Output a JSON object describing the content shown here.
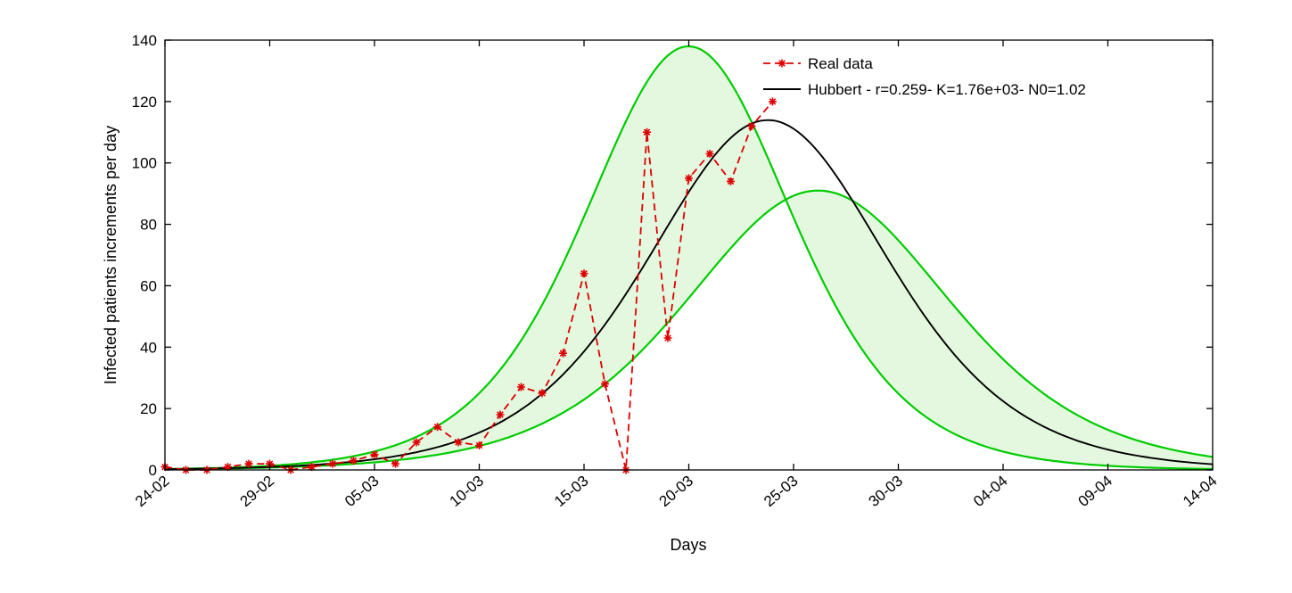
{
  "page": {
    "background": "#ffffff"
  },
  "chart_data": {
    "type": "line",
    "title": "",
    "xlabel": "Days",
    "ylabel": "Infected patients increments per day",
    "xlim_days": [
      0,
      50
    ],
    "ylim": [
      0,
      140
    ],
    "grid": false,
    "legend_position": "top-right",
    "legend": [
      "Real data",
      "Hubbert - r=0.259- K=1.76e+03- N0=1.02"
    ],
    "x_ticks_days": [
      0,
      5,
      10,
      15,
      20,
      25,
      30,
      35,
      40,
      45,
      50
    ],
    "x_tick_labels": [
      "24-02",
      "29-02",
      "05-03",
      "10-03",
      "15-03",
      "20-03",
      "25-03",
      "30-03",
      "04-04",
      "09-04",
      "14-04"
    ],
    "y_ticks": [
      0,
      20,
      40,
      60,
      80,
      100,
      120,
      140
    ],
    "colors": {
      "real_data": "#dd0000",
      "hubbert_fit": "#000000",
      "confidence_curves": "#00cc00",
      "confidence_fill": "#e4f8df",
      "axis": "#000000"
    },
    "series": [
      {
        "name": "Real data",
        "type": "scatter-line",
        "color": "#dd0000",
        "linestyle": "dashed",
        "marker": "asterisk",
        "start_date": "24-02",
        "dates": [
          "24-02",
          "25-02",
          "26-02",
          "27-02",
          "28-02",
          "29-02",
          "01-03",
          "02-03",
          "03-03",
          "04-03",
          "05-03",
          "06-03",
          "07-03",
          "08-03",
          "09-03",
          "10-03",
          "11-03",
          "12-03",
          "13-03",
          "14-03",
          "15-03",
          "16-03",
          "17-03",
          "18-03",
          "19-03",
          "20-03",
          "21-03",
          "22-03",
          "23-03",
          "24-03"
        ],
        "x_days": [
          0,
          1,
          2,
          3,
          4,
          5,
          6,
          7,
          8,
          9,
          10,
          11,
          12,
          13,
          14,
          15,
          16,
          17,
          18,
          19,
          20,
          21,
          22,
          23,
          24,
          25,
          26,
          27,
          28,
          29
        ],
        "y": [
          1,
          0,
          0,
          1,
          2,
          2,
          0,
          1,
          2,
          3,
          5,
          2,
          9,
          14,
          9,
          8,
          18,
          27,
          25,
          38,
          64,
          28,
          0,
          110,
          43,
          95,
          103,
          94,
          112,
          120
        ]
      },
      {
        "name": "Hubbert - r=0.259- K=1.76e+03- N0=1.02",
        "type": "hubbert-model",
        "color": "#000000",
        "linestyle": "solid",
        "params": {
          "r": 0.259,
          "K": 1760,
          "N0": 1.02
        },
        "peak_value_est": 114,
        "peak_day_est": 28.8
      },
      {
        "name": "confidence-band-upper-curve",
        "type": "hubbert-model",
        "color": "#00cc00",
        "linestyle": "solid",
        "params": {
          "r": 0.3,
          "K": 1840,
          "N0": 1.02
        },
        "peak_value_est": 138,
        "peak_day_est": 25.0
      },
      {
        "name": "confidence-band-lower-curve",
        "type": "hubbert-model",
        "color": "#00cc00",
        "linestyle": "solid",
        "params": {
          "r": 0.235,
          "K": 1549,
          "N0": 1.02
        },
        "peak_value_est": 91,
        "peak_day_est": 31.2
      }
    ],
    "band": {
      "between_series": [
        2,
        3
      ],
      "fill": "#e4f8df"
    }
  }
}
